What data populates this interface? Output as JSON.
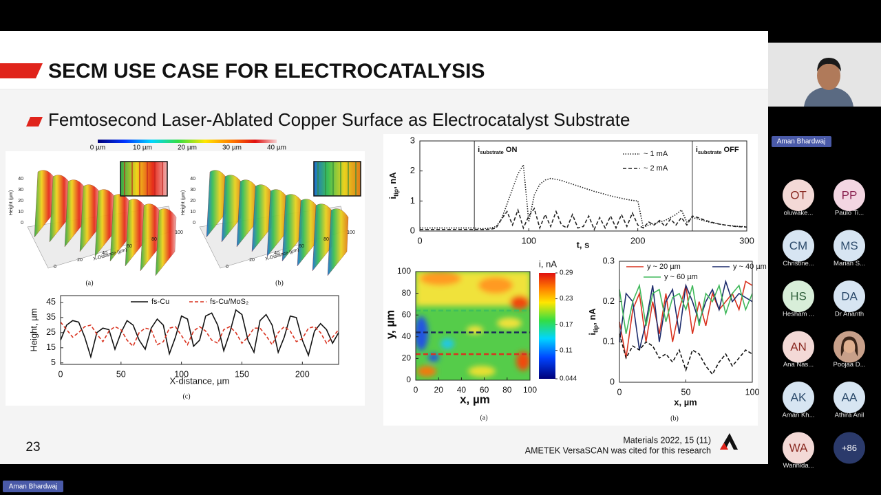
{
  "slide": {
    "title": "SECM USE CASE FOR ELECTROCATALYSIS",
    "subtitle": "Femtosecond Laser-Ablated Copper Surface as Electrocatalyst Substrate",
    "slide_number": "23",
    "citation": [
      "Materials 2022, 15 (11)",
      "AMETEK VersaSCAN was cited for this research"
    ],
    "surface_colorbar": [
      "0 µm",
      "10 µm",
      "20 µm",
      "30 µm",
      "40 µm"
    ],
    "surfaces": [
      {
        "label": "(a)",
        "x_axis_label": "X-Distance (µm)",
        "x_ticks": [
          "0",
          "20",
          "40",
          "60",
          "80",
          "100"
        ],
        "z_label": "Height (µm)",
        "z_ticks": [
          "40",
          "30",
          "20",
          "10",
          "0"
        ]
      },
      {
        "label": "(b)",
        "x_axis_label": "X-Distance (µm)",
        "x_ticks": [
          "0",
          "20",
          "40",
          "60",
          "80",
          "100"
        ],
        "z_label": "Height (µm)",
        "z_ticks": [
          "40",
          "30",
          "20",
          "10",
          "0"
        ]
      }
    ],
    "charts": [
      {
        "type": "line",
        "x_label": "t, s",
        "y_label": {
          "main": "i",
          "sub": "tip",
          "rest": ", nA"
        },
        "annotations": [
          {
            "main": "i",
            "sub": "substrate",
            "rest": " ON"
          },
          {
            "main": "i",
            "sub": "substrate",
            "rest": " OFF"
          }
        ],
        "vlines": [
          50,
          250
        ],
        "xlim": [
          0,
          300
        ],
        "ylim": [
          0,
          3
        ],
        "xticks": [
          0,
          100,
          200,
          300
        ],
        "yticks": [
          0,
          1,
          2,
          3
        ],
        "frame": true,
        "x": [
          0,
          5,
          10,
          15,
          20,
          25,
          30,
          35,
          40,
          45,
          50,
          55,
          60,
          65,
          70,
          75,
          80,
          85,
          90,
          95,
          100,
          105,
          110,
          115,
          120,
          125,
          130,
          135,
          140,
          145,
          150,
          155,
          160,
          165,
          170,
          175,
          180,
          185,
          190,
          195,
          200,
          205,
          210,
          215,
          220,
          225,
          230,
          235,
          240,
          245,
          250,
          255,
          260,
          265,
          270,
          275,
          280,
          285,
          290,
          295,
          300
        ],
        "series": [
          {
            "name": "~ 1 mA",
            "color": "#222222",
            "dash": "dotted",
            "values": [
              0.1,
              0.1,
              0.1,
              0.1,
              0.1,
              0.1,
              0.1,
              0.1,
              0.1,
              0.1,
              0.1,
              0.08,
              0.08,
              0.1,
              0.15,
              0.4,
              0.9,
              1.4,
              1.9,
              2.2,
              0.3,
              1.2,
              1.55,
              1.7,
              1.75,
              1.72,
              1.68,
              1.62,
              1.56,
              1.5,
              1.44,
              1.38,
              1.32,
              1.27,
              1.22,
              1.17,
              1.13,
              1.09,
              1.05,
              1.02,
              1.0,
              0.12,
              0.2,
              0.25,
              0.3,
              0.35,
              0.45,
              0.55,
              0.7,
              0.3,
              0.45,
              0.4,
              0.35,
              0.3,
              0.26,
              0.23,
              0.2,
              0.18,
              0.16,
              0.15,
              0.14
            ]
          },
          {
            "name": "~ 2 mA",
            "color": "#222222",
            "dash": "dashed",
            "values": [
              0.05,
              0.05,
              0.05,
              0.05,
              0.05,
              0.05,
              0.05,
              0.05,
              0.05,
              0.05,
              0.05,
              0.05,
              0.05,
              0.06,
              0.1,
              0.4,
              0.65,
              0.2,
              0.7,
              0.1,
              0.5,
              0.75,
              0.1,
              0.55,
              0.15,
              0.65,
              0.2,
              0.1,
              0.55,
              0.1,
              0.15,
              0.5,
              0.05,
              0.45,
              0.1,
              0.5,
              0.1,
              0.55,
              0.15,
              0.6,
              0.2,
              0.1,
              0.3,
              0.2,
              0.35,
              0.15,
              0.4,
              0.2,
              0.45,
              0.2,
              0.5,
              0.45,
              0.38,
              0.32,
              0.27,
              0.23,
              0.2,
              0.17,
              0.15,
              0.14,
              0.13
            ]
          }
        ]
      },
      {
        "type": "line",
        "x_label": "X-distance, µm",
        "y_label": "Height, µm",
        "label": "(c)",
        "xlim": [
          0,
          230
        ],
        "ylim": [
          4,
          49.5
        ],
        "xticks": [
          0,
          50,
          100,
          150,
          200
        ],
        "yticks": [
          5,
          15,
          25,
          35,
          45
        ],
        "frame": true,
        "x": [
          0,
          5,
          10,
          15,
          20,
          25,
          30,
          35,
          40,
          45,
          50,
          55,
          60,
          65,
          70,
          75,
          80,
          85,
          90,
          95,
          100,
          105,
          110,
          115,
          120,
          125,
          130,
          135,
          140,
          145,
          150,
          155,
          160,
          165,
          170,
          175,
          180,
          185,
          190,
          195,
          200,
          205,
          210,
          215,
          220,
          225,
          230
        ],
        "series": [
          {
            "name": "fs-Cu",
            "color": "#111111",
            "dash": "solid",
            "values": [
              20,
              30,
              33,
              32,
              22,
              9,
              25,
              28,
              27,
              14,
              25,
              33,
              30,
              20,
              14,
              28,
              34,
              30,
              11,
              22,
              36,
              34,
              16,
              20,
              36,
              38,
              30,
              13,
              25,
              40,
              37,
              20,
              12,
              33,
              37,
              30,
              12,
              22,
              36,
              35,
              20,
              10,
              26,
              31,
              27,
              18,
              25
            ]
          },
          {
            "name": "fs-Cu/MoS₂",
            "color": "#d9321f",
            "dash": "dashed",
            "values": [
              32,
              27,
              22,
              25,
              29,
              30,
              24,
              19,
              26,
              29,
              27,
              20,
              16,
              25,
              28,
              27,
              17,
              19,
              28,
              29,
              23,
              17,
              26,
              29,
              26,
              20,
              18,
              27,
              29,
              25,
              18,
              22,
              28,
              28,
              23,
              17,
              25,
              29,
              26,
              19,
              21,
              28,
              29,
              25,
              18,
              22,
              27
            ]
          }
        ]
      },
      {
        "type": "contour-map",
        "x_label": "x, µm",
        "y_label": "y, µm",
        "label": "(a)",
        "colorbar_title": "i, nA",
        "xlim": [
          0,
          100
        ],
        "ylim": [
          0,
          100
        ],
        "xticks": [
          0,
          20,
          40,
          60,
          80,
          100
        ],
        "yticks": [
          0,
          20,
          40,
          60,
          80,
          100
        ],
        "clim": [
          0.044,
          0.29
        ],
        "cticks": [
          0.044,
          0.11,
          0.17,
          0.23,
          0.29
        ],
        "hlines": [
          {
            "y": 64,
            "color": "#3fbf5a"
          },
          {
            "y": 44,
            "color": "#1b2a5a"
          },
          {
            "y": 24,
            "color": "#d9321f"
          }
        ]
      },
      {
        "type": "line",
        "x_label": "x, µm",
        "y_label": {
          "main": "i",
          "sub": "tip",
          "rest": ", nA"
        },
        "label": "(b)",
        "xlim": [
          0,
          100
        ],
        "ylim": [
          0,
          0.3
        ],
        "xticks": [
          0,
          50,
          100
        ],
        "yticks": [
          0,
          0.1,
          0.2,
          0.3
        ],
        "frame": true,
        "x": [
          0,
          5,
          10,
          15,
          20,
          25,
          30,
          35,
          40,
          45,
          50,
          55,
          60,
          65,
          70,
          75,
          80,
          85,
          90,
          95,
          100
        ],
        "series": [
          {
            "name": "y ~ 20 µm",
            "color": "#d9321f",
            "dash": "solid",
            "values": [
              0.15,
              0.06,
              0.18,
              0.22,
              0.1,
              0.2,
              0.12,
              0.22,
              0.1,
              0.18,
              0.24,
              0.12,
              0.2,
              0.14,
              0.22,
              0.18,
              0.2,
              0.22,
              0.18,
              0.25,
              0.24
            ]
          },
          {
            "name": "y ~ 40 µm",
            "color": "#1b2a6b",
            "dash": "solid",
            "values": [
              0.1,
              0.22,
              0.2,
              0.08,
              0.15,
              0.24,
              0.1,
              0.2,
              0.23,
              0.12,
              0.24,
              0.2,
              0.15,
              0.2,
              0.23,
              0.18,
              0.25,
              0.2,
              0.22,
              0.21,
              0.2
            ]
          },
          {
            "name": "y ~ 60 µm",
            "color": "#3fb85a",
            "dash": "solid",
            "values": [
              0.23,
              0.12,
              0.2,
              0.24,
              0.14,
              0.22,
              0.23,
              0.15,
              0.21,
              0.22,
              0.18,
              0.24,
              0.14,
              0.22,
              0.2,
              0.24,
              0.17,
              0.22,
              0.24,
              0.18,
              0.22
            ]
          },
          {
            "color": "#111111",
            "dash": "dashed",
            "values": [
              0.12,
              0.06,
              0.09,
              0.08,
              0.1,
              0.09,
              0.06,
              0.07,
              0.05,
              0.08,
              0.03,
              0.08,
              0.07,
              0.04,
              0.02,
              0.05,
              0.07,
              0.04,
              0.06,
              0.08,
              0.07
            ]
          }
        ]
      }
    ]
  },
  "video_tile": {
    "name": "Aman Bhardwaj"
  },
  "participants": [
    {
      "initials": "OT",
      "name": "oluwake...",
      "bg": "#f3d9d6",
      "fg": "#8a2a22"
    },
    {
      "initials": "PP",
      "name": "Paulo Ti...",
      "bg": "#f3d6e2",
      "fg": "#8a2250"
    },
    {
      "initials": "CM",
      "name": "Christine...",
      "bg": "#d7e5f2",
      "fg": "#2b4a6b"
    },
    {
      "initials": "MS",
      "name": "Marian S...",
      "bg": "#d7e5f2",
      "fg": "#2b4a6b"
    },
    {
      "initials": "HS",
      "name": "Hesham ...",
      "bg": "#d8eed9",
      "fg": "#2e5e3a"
    },
    {
      "initials": "DA",
      "name": "Dr Ananth",
      "bg": "#d7e5f2",
      "fg": "#2b4a6b"
    },
    {
      "initials": "AN",
      "name": "Ana Nas...",
      "bg": "#f3d9d6",
      "fg": "#8a2a22"
    },
    {
      "name": "Poojaa D...",
      "photo": true,
      "bg": "#c8a08a",
      "fg": "#3a2418"
    },
    {
      "initials": "AK",
      "name": "Aman Kh...",
      "bg": "#d7e5f2",
      "fg": "#2b4a6b"
    },
    {
      "initials": "AA",
      "name": "Athira Anil",
      "bg": "#d7e5f2",
      "fg": "#2b4a6b"
    },
    {
      "initials": "WA",
      "name": "Wannida...",
      "bg": "#f3d9d6",
      "fg": "#8a2a22"
    },
    {
      "initials": "+86",
      "bg": "#2b3a6b",
      "fg": "#ffffff"
    }
  ],
  "active_speaker_label": "Aman Bhardwaj"
}
